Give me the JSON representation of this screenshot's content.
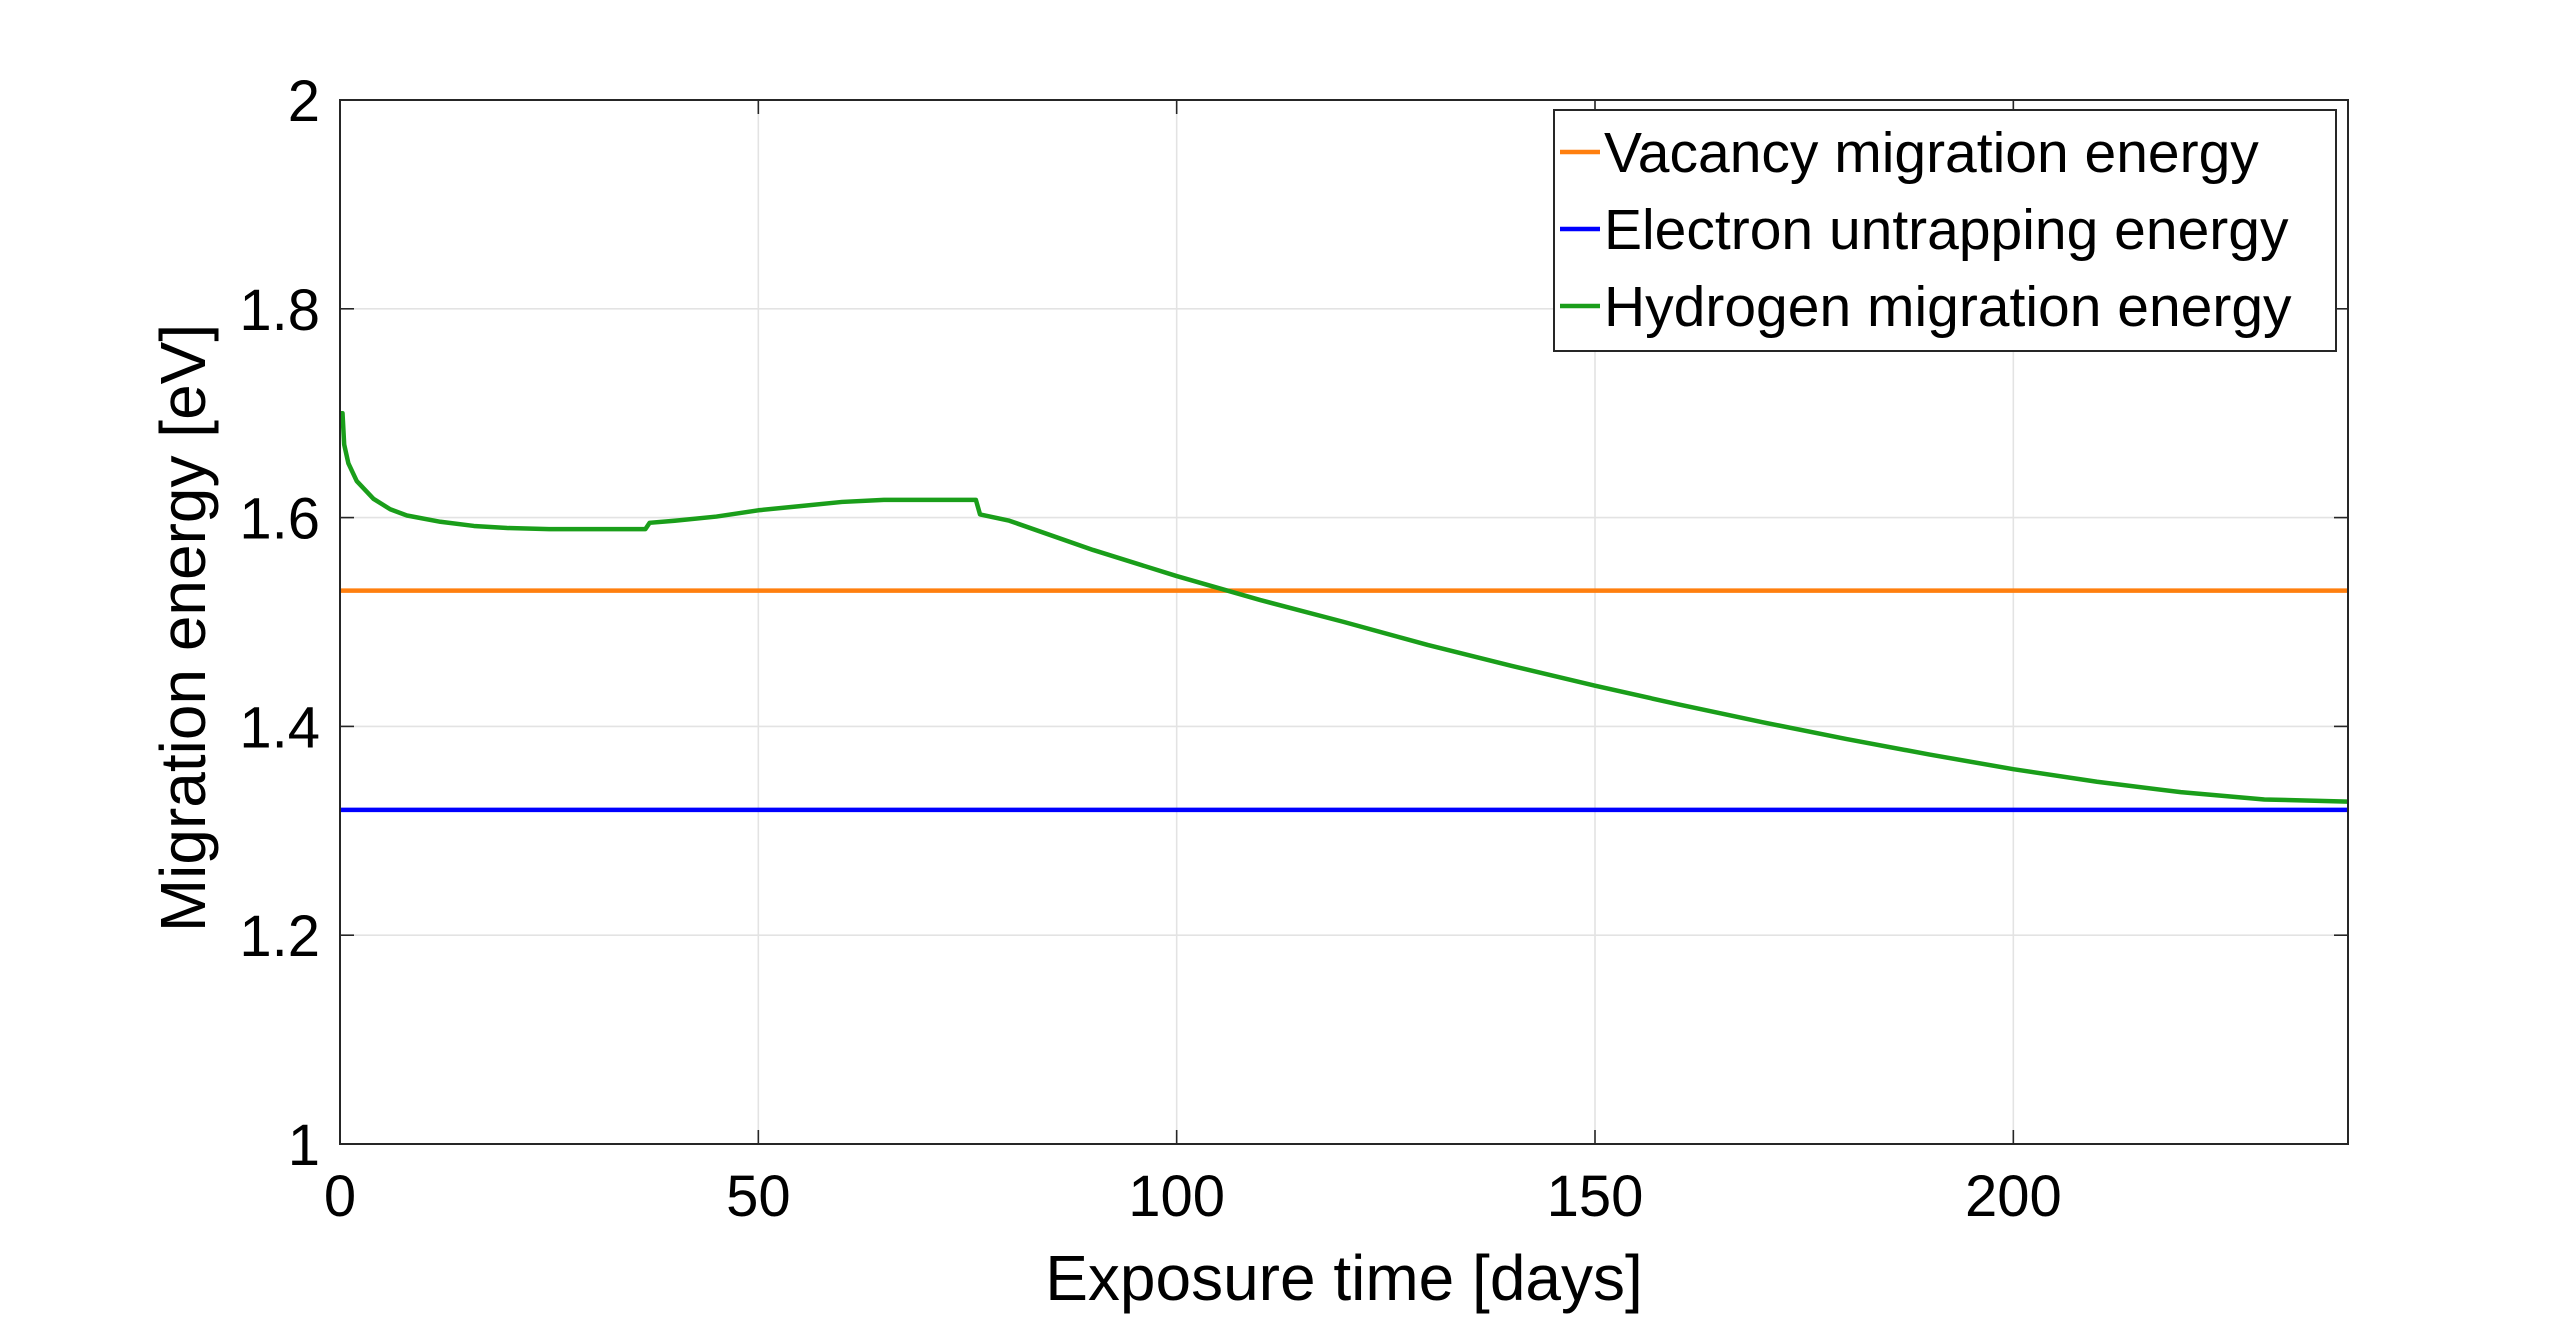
{
  "chart_data": {
    "type": "line",
    "xlabel": "Exposure time [days]",
    "ylabel": "Migration energy [eV]",
    "xlim": [
      0,
      240
    ],
    "ylim": [
      1,
      2
    ],
    "xticks": [
      0,
      50,
      100,
      150,
      200
    ],
    "yticks": [
      1,
      1.2,
      1.4,
      1.6,
      1.8,
      2
    ],
    "xtick_labels": [
      "0",
      "50",
      "100",
      "150",
      "200"
    ],
    "ytick_labels": [
      "1",
      "1.2",
      "1.4",
      "1.6",
      "1.8",
      "2"
    ],
    "grid": true,
    "legend_position": "top-right",
    "series": [
      {
        "name": "Vacancy migration energy",
        "color": "#ff7f0e",
        "x": [
          0,
          240
        ],
        "y": [
          1.53,
          1.53
        ]
      },
      {
        "name": "Electron untrapping energy",
        "color": "#0000ff",
        "x": [
          0,
          240
        ],
        "y": [
          1.32,
          1.32
        ]
      },
      {
        "name": "Hydrogen migration energy",
        "color": "#1a9e1a",
        "x": [
          0,
          0.3,
          0.5,
          1,
          2,
          4,
          6,
          8,
          12,
          16,
          20,
          25,
          30,
          36.5,
          37,
          40,
          45,
          50,
          55,
          60,
          65,
          70,
          76,
          76.5,
          80,
          90,
          100,
          110,
          120,
          130,
          140,
          150,
          160,
          170,
          180,
          190,
          200,
          210,
          220,
          230,
          240
        ],
        "y": [
          1.7,
          1.7,
          1.67,
          1.652,
          1.635,
          1.618,
          1.608,
          1.602,
          1.596,
          1.592,
          1.59,
          1.589,
          1.589,
          1.589,
          1.595,
          1.597,
          1.601,
          1.607,
          1.611,
          1.615,
          1.617,
          1.617,
          1.617,
          1.603,
          1.597,
          1.569,
          1.544,
          1.521,
          1.5,
          1.478,
          1.458,
          1.439,
          1.421,
          1.404,
          1.388,
          1.373,
          1.359,
          1.347,
          1.337,
          1.33,
          1.328
        ]
      }
    ]
  }
}
